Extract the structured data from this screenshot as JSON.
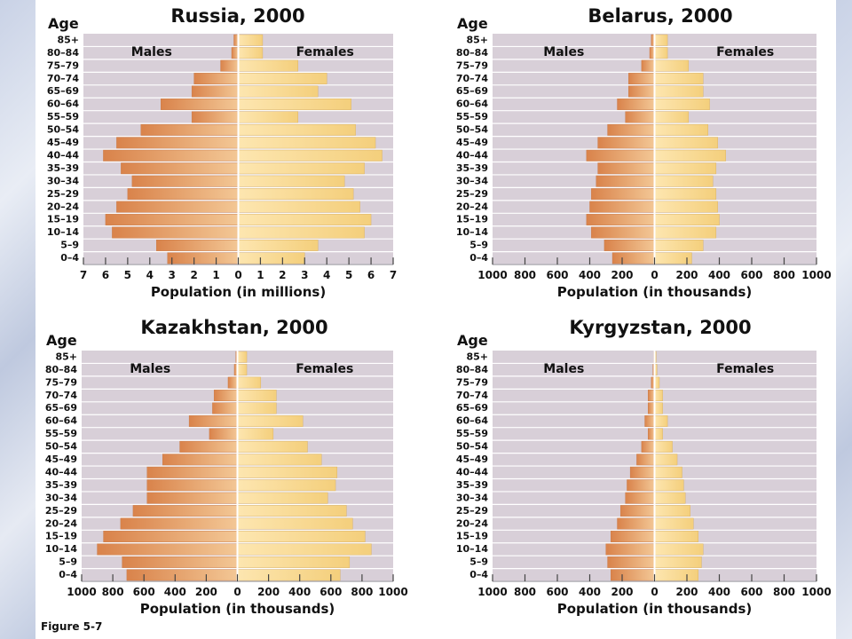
{
  "figure_label": "Figure 5-7",
  "chart_data": [
    {
      "type": "bar",
      "title": "Russia, 2000",
      "ylabel": "Age",
      "xlabel": "Population (in millions)",
      "categories": [
        "85+",
        "80-84",
        "75-79",
        "70-74",
        "65-69",
        "60-64",
        "55-59",
        "50-54",
        "45-49",
        "40-44",
        "35-39",
        "30-34",
        "25-29",
        "20-24",
        "15-19",
        "10-14",
        "5-9",
        "0-4"
      ],
      "series": [
        {
          "name": "Males",
          "values": [
            0.2,
            0.3,
            0.8,
            2.0,
            2.1,
            3.5,
            2.1,
            4.4,
            5.5,
            6.1,
            5.3,
            4.8,
            5.0,
            5.5,
            6.0,
            5.7,
            3.7,
            3.2
          ]
        },
        {
          "name": "Females",
          "values": [
            1.1,
            1.1,
            2.7,
            4.0,
            3.6,
            5.1,
            2.7,
            5.3,
            6.2,
            6.5,
            5.7,
            4.8,
            5.2,
            5.5,
            6.0,
            5.7,
            3.6,
            3.0
          ]
        }
      ],
      "xticks": [
        "7",
        "6",
        "5",
        "4",
        "3",
        "2",
        "1",
        "0",
        "1",
        "2",
        "3",
        "4",
        "5",
        "6",
        "7"
      ],
      "xlim": [
        -7,
        7
      ]
    },
    {
      "type": "bar",
      "title": "Belarus, 2000",
      "ylabel": "Age",
      "xlabel": "Population (in thousands)",
      "categories": [
        "85+",
        "80-84",
        "75-79",
        "70-74",
        "65-69",
        "60-64",
        "55-59",
        "50-54",
        "45-49",
        "40-44",
        "35-39",
        "30-34",
        "25-29",
        "20-24",
        "15-19",
        "10-14",
        "5-9",
        "0-4"
      ],
      "series": [
        {
          "name": "Males",
          "values": [
            20,
            30,
            80,
            160,
            160,
            230,
            180,
            290,
            350,
            420,
            350,
            360,
            390,
            400,
            420,
            390,
            310,
            260
          ]
        },
        {
          "name": "Females",
          "values": [
            80,
            80,
            210,
            300,
            300,
            340,
            210,
            330,
            390,
            440,
            380,
            360,
            380,
            390,
            400,
            380,
            300,
            230
          ]
        }
      ],
      "xticks": [
        "1000",
        "800",
        "600",
        "400",
        "200",
        "0",
        "200",
        "400",
        "600",
        "800",
        "1000"
      ],
      "xlim": [
        -1000,
        1000
      ]
    },
    {
      "type": "bar",
      "title": "Kazakhstan, 2000",
      "ylabel": "Age",
      "xlabel": "Population (in thousands)",
      "categories": [
        "85+",
        "80-84",
        "75-79",
        "70-74",
        "65-69",
        "60-64",
        "55-59",
        "50-54",
        "45-49",
        "40-44",
        "35-39",
        "30-34",
        "25-29",
        "20-24",
        "15-19",
        "10-14",
        "5-9",
        "0-4"
      ],
      "series": [
        {
          "name": "Males",
          "values": [
            10,
            20,
            60,
            150,
            160,
            310,
            180,
            370,
            480,
            580,
            580,
            580,
            670,
            750,
            860,
            900,
            740,
            710
          ]
        },
        {
          "name": "Females",
          "values": [
            60,
            60,
            150,
            250,
            250,
            420,
            230,
            450,
            540,
            640,
            630,
            580,
            700,
            740,
            820,
            860,
            720,
            660
          ]
        }
      ],
      "xticks": [
        "1000",
        "800",
        "600",
        "400",
        "200",
        "0",
        "200",
        "400",
        "600",
        "800",
        "1000"
      ],
      "xlim": [
        -1000,
        1000
      ]
    },
    {
      "type": "bar",
      "title": "Kyrgyzstan, 2000",
      "ylabel": "Age",
      "xlabel": "Population (in thousands)",
      "categories": [
        "85+",
        "80-84",
        "75-79",
        "70-74",
        "65-69",
        "60-64",
        "55-59",
        "50-54",
        "45-49",
        "40-44",
        "35-39",
        "30-34",
        "25-29",
        "20-24",
        "15-19",
        "10-14",
        "5-9",
        "0-4"
      ],
      "series": [
        {
          "name": "Males",
          "values": [
            5,
            10,
            20,
            40,
            40,
            60,
            40,
            80,
            110,
            150,
            170,
            180,
            210,
            230,
            270,
            300,
            290,
            270
          ]
        },
        {
          "name": "Females",
          "values": [
            10,
            15,
            30,
            50,
            50,
            80,
            50,
            110,
            140,
            170,
            180,
            190,
            220,
            240,
            270,
            300,
            290,
            270
          ]
        }
      ],
      "xticks": [
        "1000",
        "800",
        "600",
        "400",
        "200",
        "0",
        "200",
        "400",
        "600",
        "800",
        "1000"
      ],
      "xlim": [
        -1000,
        1000
      ]
    }
  ]
}
